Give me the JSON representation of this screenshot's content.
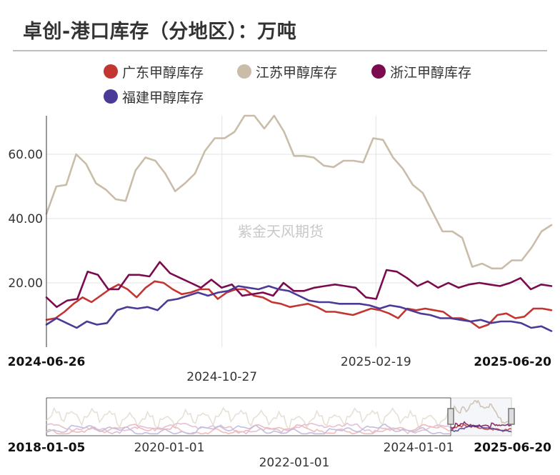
{
  "header": {
    "title": "卓创-港口库存（分地区）：万吨"
  },
  "watermark": "紫金天风期货",
  "legend": [
    {
      "label": "广东甲醇库存",
      "color": "#c23531"
    },
    {
      "label": "江苏甲醇库存",
      "color": "#c9bca8"
    },
    {
      "label": "浙江甲醇库存",
      "color": "#7b0a4f"
    },
    {
      "label": "福建甲醇库存",
      "color": "#4b3a96"
    }
  ],
  "chart_data": {
    "type": "line",
    "title": "卓创-港口库存（分地区）：万吨",
    "xlabel": "",
    "ylabel": "",
    "ylim": [
      0,
      72
    ],
    "y_ticks": [
      "20.00",
      "40.00",
      "60.00"
    ],
    "y_tick_values": [
      20,
      40,
      60
    ],
    "x_ticks": [
      "2024-06-26",
      "2024-10-27",
      "2025-02-19",
      "2025-06-20"
    ],
    "x_range": [
      "2024-06-26",
      "2025-06-20"
    ],
    "grid": true,
    "legend_position": "top",
    "series": [
      {
        "name": "广东甲醇库存",
        "color": "#c23531",
        "values": [
          8.5,
          9,
          11,
          13.5,
          15.5,
          14,
          16,
          18,
          19.5,
          18,
          15.5,
          18.5,
          20.5,
          20,
          18,
          16.5,
          17,
          18,
          18,
          15,
          17,
          18,
          18,
          16,
          15.5,
          14,
          13.5,
          12.5,
          13,
          13.5,
          12.5,
          11,
          11,
          10.5,
          10,
          11,
          12,
          11.5,
          10.5,
          9,
          12,
          11.5,
          12,
          11.5,
          11,
          9,
          9,
          8,
          6,
          7,
          10,
          10.5,
          9,
          9.5,
          12,
          12,
          11.5
        ]
      },
      {
        "name": "江苏甲醇库存",
        "color": "#c9bca8",
        "values": [
          41.5,
          50,
          50.5,
          60,
          57,
          51,
          49,
          46,
          45.5,
          55,
          59,
          58,
          54,
          48.5,
          51,
          54,
          61,
          65,
          65,
          67,
          72,
          72,
          68,
          72,
          67,
          59.5,
          59.5,
          59,
          56.5,
          56,
          58,
          58,
          57.5,
          65,
          64.5,
          59,
          55.5,
          50.5,
          48,
          42,
          36,
          36,
          34,
          25,
          26,
          24.5,
          24.5,
          27,
          27,
          31,
          36,
          38
        ]
      },
      {
        "name": "浙江甲醇库存",
        "color": "#7b0a4f",
        "values": [
          15.5,
          12.5,
          14.5,
          15,
          23.5,
          22.5,
          18,
          18,
          22.5,
          22.5,
          22,
          26.5,
          23,
          21.5,
          20,
          18.5,
          21,
          18.5,
          19.5,
          16,
          16.5,
          17,
          16,
          20,
          17.5,
          17.5,
          18.5,
          19,
          19.5,
          19,
          18.5,
          15.5,
          15,
          24,
          23.5,
          21.5,
          19,
          20.5,
          18.5,
          20,
          18.5,
          19.5,
          20,
          19.5,
          19,
          20,
          21.5,
          18,
          19.5,
          19
        ]
      },
      {
        "name": "福建甲醇库存",
        "color": "#4b3a96",
        "values": [
          7,
          9,
          7.5,
          6,
          8,
          7,
          7.5,
          11.5,
          12.5,
          12,
          12.5,
          11.5,
          14.5,
          15,
          16,
          17,
          16,
          17,
          17.5,
          19,
          18.5,
          18,
          19,
          18,
          17.5,
          16,
          14.5,
          14,
          14,
          13.5,
          13.5,
          13.5,
          13,
          12,
          13,
          12.5,
          11.5,
          10.5,
          10,
          9,
          9,
          8.5,
          8,
          8.5,
          7.5,
          8,
          8,
          7.5,
          6,
          6.5,
          5
        ]
      }
    ]
  },
  "datazoom": {
    "start_label": "2018-01-05",
    "end_label": "2025-06-20",
    "tick_labels": [
      "2020-01-01",
      "2024-01-01",
      "2022-01-01"
    ]
  }
}
